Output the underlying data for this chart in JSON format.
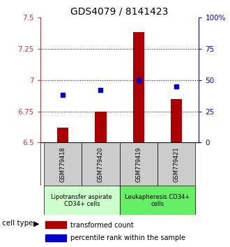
{
  "title": "GDS4079 / 8141423",
  "samples": [
    "GSM779418",
    "GSM779420",
    "GSM779419",
    "GSM779421"
  ],
  "red_values": [
    6.62,
    6.75,
    7.38,
    6.85
  ],
  "blue_values": [
    38,
    42,
    50,
    45
  ],
  "ylim_left": [
    6.5,
    7.5
  ],
  "ylim_right": [
    0,
    100
  ],
  "yticks_left": [
    6.5,
    6.75,
    7.0,
    7.25,
    7.5
  ],
  "ytick_labels_left": [
    "6.5",
    "6.75",
    "7",
    "7.25",
    "7.5"
  ],
  "yticks_right": [
    0,
    25,
    50,
    75,
    100
  ],
  "ytick_labels_right": [
    "0",
    "25",
    "50",
    "75",
    "100%"
  ],
  "hlines": [
    6.75,
    7.0,
    7.25
  ],
  "group1_label": "Lipotransfer aspirate\nCD34+ cells",
  "group2_label": "Leukapheresis CD34+\ncells",
  "cell_type_label": "cell type",
  "legend1": "transformed count",
  "legend2": "percentile rank within the sample",
  "bar_color": "#aa0000",
  "dot_color": "#0000cc",
  "group1_color": "#ccffcc",
  "group2_color": "#66ee66",
  "sample_box_color": "#cccccc",
  "bar_bottom": 6.5,
  "title_fontsize": 10,
  "tick_fontsize": 7.5,
  "sample_fontsize": 6,
  "group_fontsize": 6,
  "legend_fontsize": 7
}
